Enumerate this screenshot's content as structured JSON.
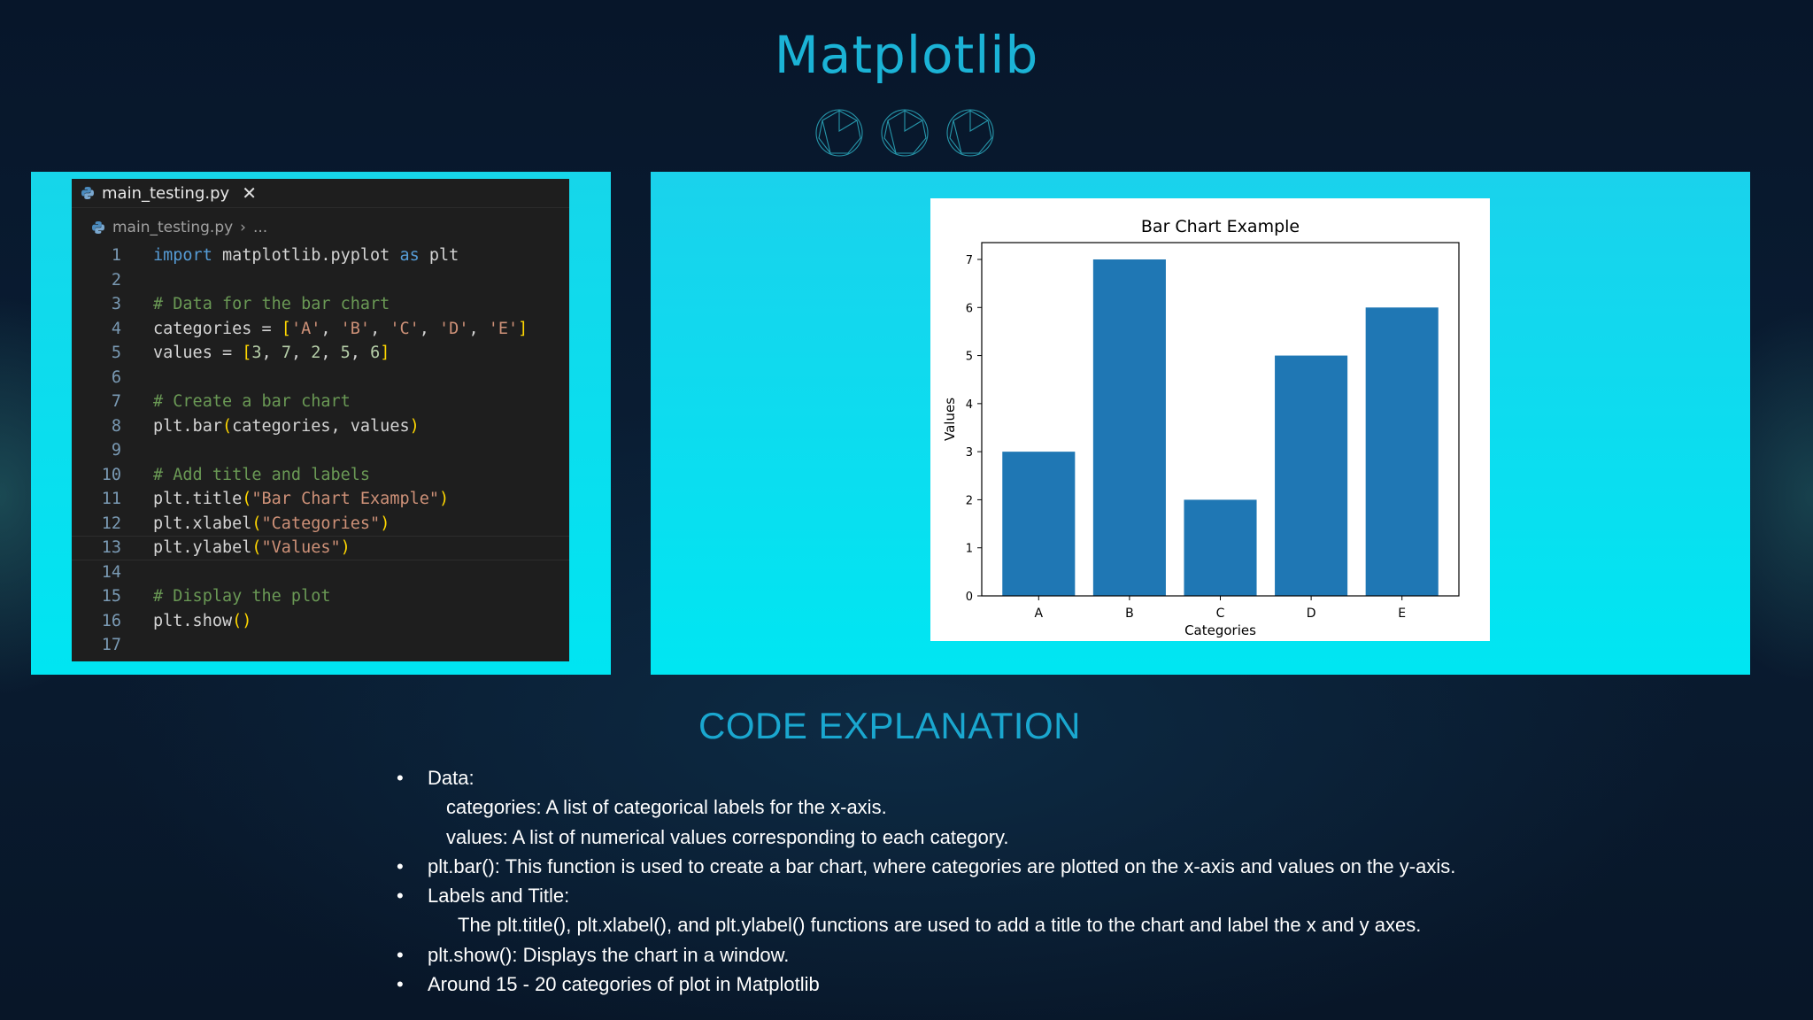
{
  "title": "Matplotlib",
  "colors": {
    "accent": "#1bb3d6",
    "panel_cyan": "#00e5f2",
    "editor_bg": "#1e1e1e",
    "bar": "#1f77b4"
  },
  "editor": {
    "tab_label": "main_testing.py",
    "tab_icon": "python-icon",
    "close_icon": "close-icon",
    "breadcrumb_file": "main_testing.py",
    "breadcrumb_sep": "›",
    "breadcrumb_more": "...",
    "lines": [
      "import matplotlib.pyplot as plt",
      "",
      "# Data for the bar chart",
      "categories = ['A', 'B', 'C', 'D', 'E']",
      "values = [3, 7, 2, 5, 6]",
      "",
      "# Create a bar chart",
      "plt.bar(categories, values)",
      "",
      "# Add title and labels",
      "plt.title(\"Bar Chart Example\")",
      "plt.xlabel(\"Categories\")",
      "plt.ylabel(\"Values\")",
      "",
      "# Display the plot",
      "plt.show()",
      ""
    ]
  },
  "chart_data": {
    "type": "bar",
    "title": "Bar Chart Example",
    "xlabel": "Categories",
    "ylabel": "Values",
    "categories": [
      "A",
      "B",
      "C",
      "D",
      "E"
    ],
    "values": [
      3,
      7,
      2,
      5,
      6
    ],
    "ylim": [
      0,
      7.35
    ],
    "yticks": [
      0,
      1,
      2,
      3,
      4,
      5,
      6,
      7
    ],
    "grid": false,
    "color": "#1f77b4"
  },
  "explanation": {
    "heading": "CODE EXPLANATION",
    "bullet_char": "•",
    "items": [
      {
        "kind": "bullet",
        "text": "Data:"
      },
      {
        "kind": "sub",
        "text": "categories: A list of categorical labels for the x-axis."
      },
      {
        "kind": "sub",
        "text": "values: A list of numerical values corresponding to each category."
      },
      {
        "kind": "bullet",
        "text": "plt.bar(): This function is used to create a bar chart, where categories are plotted on the x-axis and values on the y-axis."
      },
      {
        "kind": "bullet",
        "text": "Labels and Title:"
      },
      {
        "kind": "sub2",
        "text": "The plt.title(), plt.xlabel(), and plt.ylabel() functions are used to add a title to the chart and label the x and y axes."
      },
      {
        "kind": "bullet",
        "text": "plt.show(): Displays the chart in a window."
      },
      {
        "kind": "bullet",
        "text": "Around 15 - 20  categories of plot in Matplotlib"
      }
    ]
  }
}
